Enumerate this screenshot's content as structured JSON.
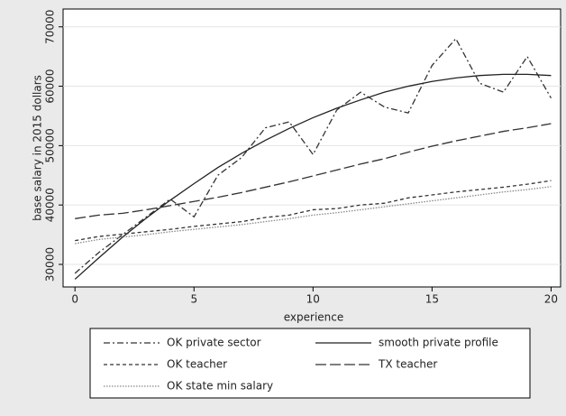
{
  "chart_data": {
    "type": "line",
    "x_label": "experience",
    "y_label": "base salary in 2015 dollars",
    "x": [
      0,
      1,
      2,
      3,
      4,
      5,
      6,
      7,
      8,
      9,
      10,
      11,
      12,
      13,
      14,
      15,
      16,
      17,
      18,
      19,
      20
    ],
    "xlim": [
      -0.5,
      20.4
    ],
    "xticks": [
      0,
      5,
      10,
      15,
      20
    ],
    "ylim": [
      26200,
      73000
    ],
    "yticks": [
      30000,
      40000,
      50000,
      60000,
      70000
    ],
    "grid": true,
    "legend": "bottom",
    "series": [
      {
        "name": "OK private sector",
        "color": "#333333",
        "dash": "7 3 2 3",
        "values": [
          28500,
          32000,
          35000,
          38000,
          41000,
          38000,
          45000,
          48000,
          53000,
          54000,
          48500,
          56000,
          59000,
          56500,
          55500,
          63500,
          68000,
          60500,
          59000,
          65000,
          58000
        ]
      },
      {
        "name": "smooth private profile",
        "color": "#222222",
        "dash": "none",
        "values": [
          27500,
          31100,
          34600,
          37800,
          40800,
          43600,
          46300,
          48700,
          50900,
          52900,
          54700,
          56300,
          57700,
          59000,
          60000,
          60800,
          61400,
          61800,
          62000,
          62000,
          61800
        ]
      },
      {
        "name": "OK teacher",
        "color": "#333333",
        "dash": "4 3",
        "values": [
          34000,
          34700,
          35100,
          35500,
          35900,
          36400,
          36800,
          37200,
          37900,
          38300,
          39200,
          39400,
          40000,
          40300,
          41200,
          41700,
          42200,
          42600,
          43000,
          43500,
          44100
        ]
      },
      {
        "name": "TX teacher",
        "color": "#333333",
        "dash": "12 4",
        "values": [
          37700,
          38300,
          38600,
          39200,
          39900,
          40600,
          41300,
          42100,
          43000,
          43900,
          44900,
          45900,
          46900,
          47800,
          48900,
          49900,
          50800,
          51600,
          52400,
          53000,
          53700
        ]
      },
      {
        "name": "OK state min salary",
        "color": "#888888",
        "dash": "1.5 1.5",
        "values": [
          33500,
          34200,
          34600,
          35000,
          35500,
          35900,
          36300,
          36700,
          37200,
          37700,
          38300,
          38700,
          39200,
          39700,
          40200,
          40700,
          41200,
          41700,
          42200,
          42600,
          43100
        ]
      }
    ]
  }
}
